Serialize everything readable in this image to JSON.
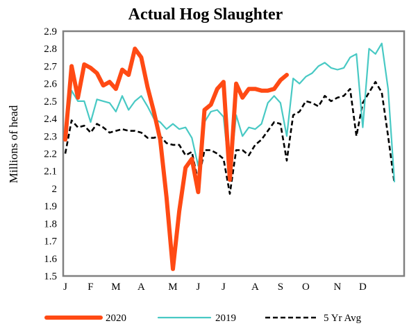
{
  "chart_data": {
    "type": "line",
    "title": "Actual Hog Slaughter",
    "xlabel": "",
    "ylabel": "Millions of head",
    "ylim": [
      1.5,
      2.9
    ],
    "yticks": [
      "1.5",
      "1.6",
      "1.7",
      "1.8",
      "1.9",
      "2",
      "2.1",
      "2.2",
      "2.3",
      "2.4",
      "2.5",
      "2.6",
      "2.7",
      "2.8",
      "2.9"
    ],
    "xticks": [
      {
        "label": "J",
        "week": 1
      },
      {
        "label": "F",
        "week": 5
      },
      {
        "label": "M",
        "week": 9
      },
      {
        "label": "A",
        "week": 13
      },
      {
        "label": "M",
        "week": 18
      },
      {
        "label": "J",
        "week": 22
      },
      {
        "label": "J",
        "week": 26
      },
      {
        "label": "A",
        "week": 31
      },
      {
        "label": "S",
        "week": 35
      },
      {
        "label": "O",
        "week": 39
      },
      {
        "label": "N",
        "week": 44
      },
      {
        "label": "D",
        "week": 48
      }
    ],
    "xlim": [
      1,
      53
    ],
    "grid": false,
    "legend_position": "bottom",
    "series": [
      {
        "name": "2020",
        "color": "#ff4a14",
        "style": "solid-thick",
        "x": [
          1,
          2,
          3,
          4,
          5,
          6,
          7,
          8,
          9,
          10,
          11,
          12,
          13,
          14,
          15,
          16,
          17,
          18,
          19,
          20,
          21,
          22,
          23,
          24,
          25,
          26,
          27,
          28,
          29,
          30,
          31,
          32,
          33,
          34,
          35,
          36
        ],
        "values": [
          2.28,
          2.7,
          2.52,
          2.71,
          2.69,
          2.66,
          2.59,
          2.61,
          2.57,
          2.68,
          2.65,
          2.8,
          2.75,
          2.58,
          2.44,
          2.28,
          1.95,
          1.54,
          1.87,
          2.12,
          2.17,
          1.98,
          2.45,
          2.48,
          2.57,
          2.61,
          2.05,
          2.6,
          2.52,
          2.57,
          2.57,
          2.56,
          2.56,
          2.57,
          2.62,
          2.65
        ]
      },
      {
        "name": "2019",
        "color": "#48c9c4",
        "style": "solid",
        "x": [
          1,
          2,
          3,
          4,
          5,
          6,
          7,
          8,
          9,
          10,
          11,
          12,
          13,
          14,
          15,
          16,
          17,
          18,
          19,
          20,
          21,
          22,
          23,
          24,
          25,
          26,
          27,
          28,
          29,
          30,
          31,
          32,
          33,
          34,
          35,
          36,
          37,
          38,
          39,
          40,
          41,
          42,
          43,
          44,
          45,
          46,
          47,
          48,
          49,
          50,
          51,
          52,
          53
        ],
        "values": [
          2.28,
          2.56,
          2.5,
          2.5,
          2.38,
          2.51,
          2.5,
          2.49,
          2.44,
          2.53,
          2.45,
          2.5,
          2.53,
          2.47,
          2.4,
          2.38,
          2.34,
          2.37,
          2.34,
          2.35,
          2.29,
          2.13,
          2.38,
          2.44,
          2.45,
          2.41,
          2.06,
          2.42,
          2.3,
          2.35,
          2.34,
          2.37,
          2.49,
          2.53,
          2.49,
          2.3,
          2.63,
          2.6,
          2.64,
          2.66,
          2.7,
          2.72,
          2.69,
          2.68,
          2.69,
          2.75,
          2.77,
          2.35,
          2.8,
          2.77,
          2.83,
          2.57,
          2.04
        ]
      },
      {
        "name": "5 Yr Avg",
        "color": "#000000",
        "style": "dashed",
        "x": [
          1,
          2,
          3,
          4,
          5,
          6,
          7,
          8,
          9,
          10,
          11,
          12,
          13,
          14,
          15,
          16,
          17,
          18,
          19,
          20,
          21,
          22,
          23,
          24,
          25,
          26,
          27,
          28,
          29,
          30,
          31,
          32,
          33,
          34,
          35,
          36,
          37,
          38,
          39,
          40,
          41,
          42,
          43,
          44,
          45,
          46,
          47,
          48,
          49,
          50,
          51,
          52,
          53
        ],
        "values": [
          2.2,
          2.39,
          2.35,
          2.36,
          2.32,
          2.37,
          2.35,
          2.32,
          2.33,
          2.34,
          2.33,
          2.33,
          2.32,
          2.29,
          2.29,
          2.3,
          2.26,
          2.25,
          2.25,
          2.19,
          2.21,
          2.04,
          2.22,
          2.22,
          2.2,
          2.17,
          1.97,
          2.22,
          2.22,
          2.19,
          2.25,
          2.28,
          2.33,
          2.38,
          2.37,
          2.16,
          2.42,
          2.44,
          2.5,
          2.49,
          2.47,
          2.53,
          2.5,
          2.52,
          2.53,
          2.57,
          2.3,
          2.49,
          2.55,
          2.61,
          2.55,
          2.3,
          2.03
        ]
      }
    ]
  }
}
